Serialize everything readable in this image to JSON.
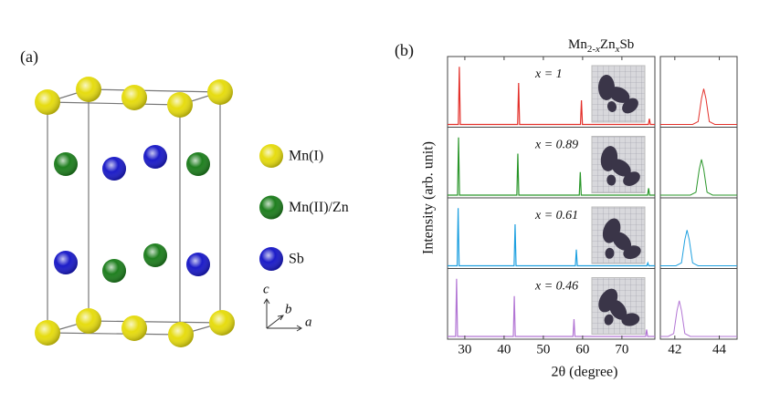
{
  "panel_a": {
    "label": "(a)",
    "legend": [
      {
        "name": "Mn(I)",
        "color": "#e6dc10"
      },
      {
        "name": "Mn(II)/Zn",
        "color": "#1f7f1f"
      },
      {
        "name": "Sb",
        "color": "#1c1cc8"
      }
    ],
    "axes": [
      "c",
      "b",
      "a"
    ]
  },
  "chart_data": {
    "type": "line",
    "label": "(b)",
    "title": [
      "Mn",
      "2-",
      "x",
      "Zn",
      "x",
      "Sb"
    ],
    "x_label": "2θ (degree)",
    "y_label": "Intensity (arb. unit)",
    "xlim": [
      25.6,
      78.4
    ],
    "xticks": [
      30,
      40,
      50,
      60,
      70
    ],
    "ylim": [
      0,
      1.1
    ],
    "inset_xlim": [
      41.35,
      44.8
    ],
    "inset_xticks": [
      42,
      44
    ],
    "series": [
      {
        "name": "x = 1",
        "color": "#e3302a",
        "x": [
          25.6,
          28.35,
          28.6,
          28.85,
          43.45,
          43.7,
          43.95,
          59.45,
          59.7,
          59.95,
          76.75,
          77.0,
          77.25,
          78.4
        ],
        "values": [
          0,
          0,
          1.0,
          0,
          0,
          0.72,
          0,
          0,
          0.42,
          0,
          0,
          0.1,
          0,
          0
        ],
        "inset_x": [
          41.35,
          42.8,
          43.05,
          43.2,
          43.3,
          43.4,
          43.55,
          43.8,
          44.8
        ],
        "inset_values": [
          0,
          0,
          0.05,
          0.45,
          0.62,
          0.45,
          0.05,
          0,
          0
        ]
      },
      {
        "name": "x = 0.89",
        "color": "#2a962a",
        "x": [
          25.6,
          28.15,
          28.4,
          28.65,
          43.25,
          43.5,
          43.75,
          59.15,
          59.4,
          59.65,
          76.55,
          76.8,
          77.05,
          78.4
        ],
        "values": [
          0,
          0,
          1.0,
          0,
          0,
          0.72,
          0,
          0,
          0.4,
          0,
          0,
          0.12,
          0,
          0
        ],
        "inset_x": [
          41.35,
          42.7,
          42.95,
          43.1,
          43.2,
          43.3,
          43.45,
          43.7,
          44.8
        ],
        "inset_values": [
          0,
          0,
          0.05,
          0.45,
          0.62,
          0.45,
          0.05,
          0,
          0
        ]
      },
      {
        "name": "x = 0.61",
        "color": "#1ea0e0",
        "x": [
          25.6,
          28.05,
          28.3,
          28.55,
          42.55,
          42.8,
          43.05,
          58.15,
          58.4,
          58.65,
          76.35,
          76.6,
          76.85,
          78.4
        ],
        "values": [
          0,
          0,
          1.0,
          0,
          0,
          0.72,
          0,
          0,
          0.28,
          0,
          0,
          0.05,
          0,
          0
        ],
        "inset_x": [
          41.35,
          42.05,
          42.3,
          42.45,
          42.55,
          42.65,
          42.8,
          43.05,
          44.8
        ],
        "inset_values": [
          0,
          0,
          0.05,
          0.45,
          0.62,
          0.45,
          0.05,
          0,
          0
        ]
      },
      {
        "name": "x = 0.46",
        "color": "#b275d4",
        "x": [
          25.6,
          27.65,
          27.9,
          28.15,
          42.35,
          42.6,
          42.85,
          57.55,
          57.8,
          58.05,
          76.05,
          76.3,
          76.55,
          78.4
        ],
        "values": [
          0,
          0,
          1.0,
          0,
          0,
          0.7,
          0,
          0,
          0.3,
          0,
          0,
          0.12,
          0,
          0
        ],
        "inset_x": [
          41.35,
          41.7,
          41.95,
          42.1,
          42.2,
          42.3,
          42.45,
          42.7,
          44.8
        ],
        "inset_values": [
          0,
          0,
          0.05,
          0.45,
          0.62,
          0.45,
          0.05,
          0,
          0
        ]
      }
    ]
  }
}
